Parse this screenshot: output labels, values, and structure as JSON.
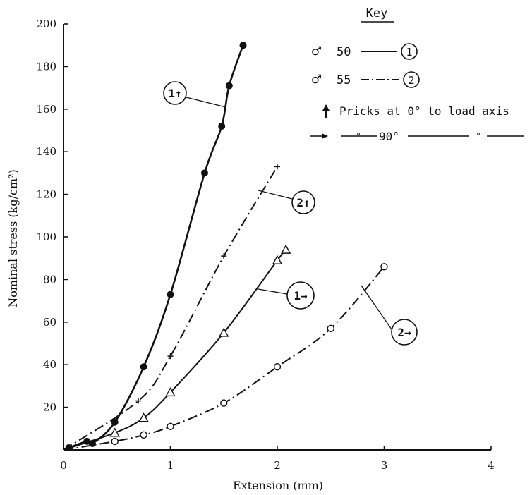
{
  "chart_data": {
    "type": "scatter",
    "xlabel": "Extension (mm)",
    "ylabel": "Nominal stress (kg/cm²)",
    "xlim": [
      0,
      4
    ],
    "ylim": [
      0,
      200
    ],
    "x_ticks": [
      "0",
      "1",
      "2",
      "3",
      "4"
    ],
    "y_ticks": [
      "20",
      "40",
      "60",
      "80",
      "100",
      "120",
      "140",
      "160",
      "180",
      "200"
    ],
    "grid": false,
    "series": [
      {
        "label": "1↑",
        "marker": "filled-circle",
        "line": "solid",
        "x": [
          0.05,
          0.22,
          0.27,
          0.48,
          0.75,
          1.0,
          1.32,
          1.48,
          1.55,
          1.68
        ],
        "y": [
          1,
          4,
          3,
          13,
          39,
          73,
          130,
          152,
          171,
          190
        ]
      },
      {
        "label": "2↑",
        "marker": "plus",
        "line": "dash-dot",
        "x": [
          0.7,
          1.0,
          1.5,
          2.0
        ],
        "y": [
          23,
          44,
          91,
          133
        ]
      },
      {
        "label": "1→",
        "marker": "triangle",
        "line": "solid",
        "x": [
          0.48,
          0.75,
          1.0,
          1.5,
          2.0,
          2.08
        ],
        "y": [
          8,
          15,
          27,
          55,
          89,
          94
        ]
      },
      {
        "label": "2→",
        "marker": "open-circle",
        "line": "dash-dot",
        "x": [
          0.48,
          0.75,
          1.0,
          1.5,
          2.0,
          2.5,
          3.0
        ],
        "y": [
          4,
          7,
          11,
          22,
          39,
          57,
          86
        ]
      }
    ],
    "key": {
      "title": "Key",
      "entries": [
        {
          "symbol": "♂",
          "text": "50",
          "circled": "1",
          "style": "solid"
        },
        {
          "symbol": "♂",
          "text": "55",
          "circled": "2",
          "style": "dash-dot"
        }
      ],
      "pricks_0": "Pricks at 0° to load axis",
      "pricks_90": "90°",
      "ditto": "\""
    },
    "legend_position": "top-right"
  }
}
